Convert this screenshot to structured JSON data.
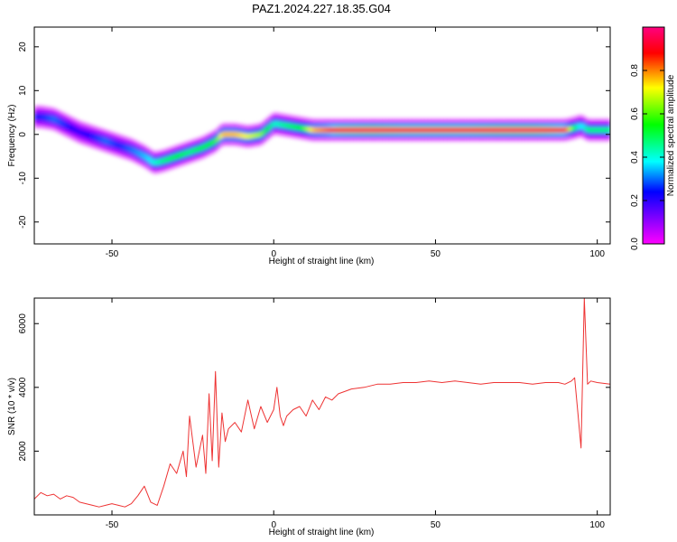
{
  "title": "PAZ1.2024.227.18.35.G04",
  "chart_data": [
    {
      "type": "heatmap",
      "xlabel": "Height of straight line (km)",
      "ylabel": "Frequency (Hz)",
      "xlim": [
        -74,
        104
      ],
      "ylim": [
        -25,
        24.5
      ],
      "xticks": [
        -50,
        0,
        50,
        100
      ],
      "yticks": [
        -20,
        -10,
        0,
        10,
        20
      ],
      "colorbar": {
        "label": "Normalized spectral amplitude",
        "range": [
          0,
          1
        ],
        "ticks": [
          0.0,
          0.2,
          0.4,
          0.6,
          0.8
        ],
        "colormap": [
          "#ff00ff",
          "#7f00ff",
          "#0000ff",
          "#00ffff",
          "#00ff00",
          "#ffff00",
          "#ff0000",
          "#ff0080"
        ]
      },
      "ridge": {
        "x": [
          -72,
          -68,
          -64,
          -60,
          -56,
          -52,
          -48,
          -44,
          -40,
          -37,
          -34,
          -30,
          -26,
          -22,
          -18,
          -16,
          -12,
          -8,
          -4,
          0,
          4,
          8,
          12,
          16,
          20,
          30,
          40,
          50,
          60,
          70,
          80,
          90,
          93,
          95,
          97,
          100,
          104
        ],
        "freq": [
          4,
          3.5,
          2,
          0.5,
          -0.5,
          -1.5,
          -2.5,
          -3.5,
          -5,
          -6.5,
          -6,
          -5,
          -4,
          -3,
          -1.5,
          0,
          0,
          -0.5,
          0,
          2.5,
          2,
          1.5,
          1,
          1,
          1,
          1,
          1,
          1,
          1,
          1,
          1,
          1,
          1.5,
          2,
          1,
          1,
          1
        ],
        "amplitude": [
          0.3,
          0.35,
          0.3,
          0.25,
          0.3,
          0.35,
          0.3,
          0.35,
          0.4,
          0.45,
          0.5,
          0.55,
          0.5,
          0.55,
          0.6,
          0.75,
          0.75,
          0.7,
          0.65,
          0.45,
          0.5,
          0.55,
          0.75,
          0.8,
          0.9,
          0.95,
          0.9,
          0.9,
          0.9,
          0.95,
          0.95,
          0.85,
          0.5,
          0.4,
          0.5,
          0.5,
          0.5
        ]
      }
    },
    {
      "type": "line",
      "xlabel": "Height of straight line (km)",
      "ylabel": "SNR (10 * v/v)",
      "xlim": [
        -74,
        104
      ],
      "ylim": [
        0,
        6800
      ],
      "xticks": [
        -50,
        0,
        50,
        100
      ],
      "yticks": [
        2000,
        4000,
        6000
      ],
      "line_color": "#ee3333",
      "series": [
        {
          "x": [
            -74,
            -72,
            -70,
            -68,
            -66,
            -64,
            -62,
            -60,
            -58,
            -56,
            -54,
            -52,
            -50,
            -48,
            -46,
            -44,
            -42,
            -40,
            -38,
            -36,
            -34,
            -32,
            -30,
            -28,
            -27,
            -26,
            -24,
            -22,
            -21,
            -20,
            -19,
            -18,
            -17,
            -16,
            -15,
            -14,
            -12,
            -10,
            -8,
            -6,
            -4,
            -2,
            0,
            1,
            2,
            3,
            4,
            6,
            8,
            10,
            12,
            14,
            16,
            18,
            20,
            24,
            28,
            32,
            36,
            40,
            44,
            48,
            52,
            56,
            60,
            64,
            68,
            72,
            76,
            80,
            84,
            88,
            90,
            92,
            93,
            94,
            95,
            96,
            97,
            98,
            100,
            104
          ],
          "y": [
            500,
            700,
            600,
            650,
            500,
            600,
            550,
            400,
            350,
            300,
            250,
            300,
            350,
            300,
            250,
            350,
            600,
            900,
            400,
            300,
            900,
            1600,
            1300,
            2000,
            1200,
            3100,
            1500,
            2500,
            1300,
            3800,
            1700,
            4500,
            1500,
            3200,
            2300,
            2700,
            2900,
            2600,
            3600,
            2700,
            3400,
            2900,
            3300,
            4000,
            3100,
            2800,
            3100,
            3300,
            3400,
            3100,
            3600,
            3300,
            3700,
            3600,
            3800,
            3950,
            4000,
            4100,
            4100,
            4150,
            4150,
            4200,
            4150,
            4200,
            4150,
            4100,
            4150,
            4150,
            4150,
            4100,
            4150,
            4150,
            4100,
            4200,
            4300,
            3200,
            2100,
            6800,
            4100,
            4200,
            4150,
            4100
          ]
        }
      ]
    }
  ]
}
